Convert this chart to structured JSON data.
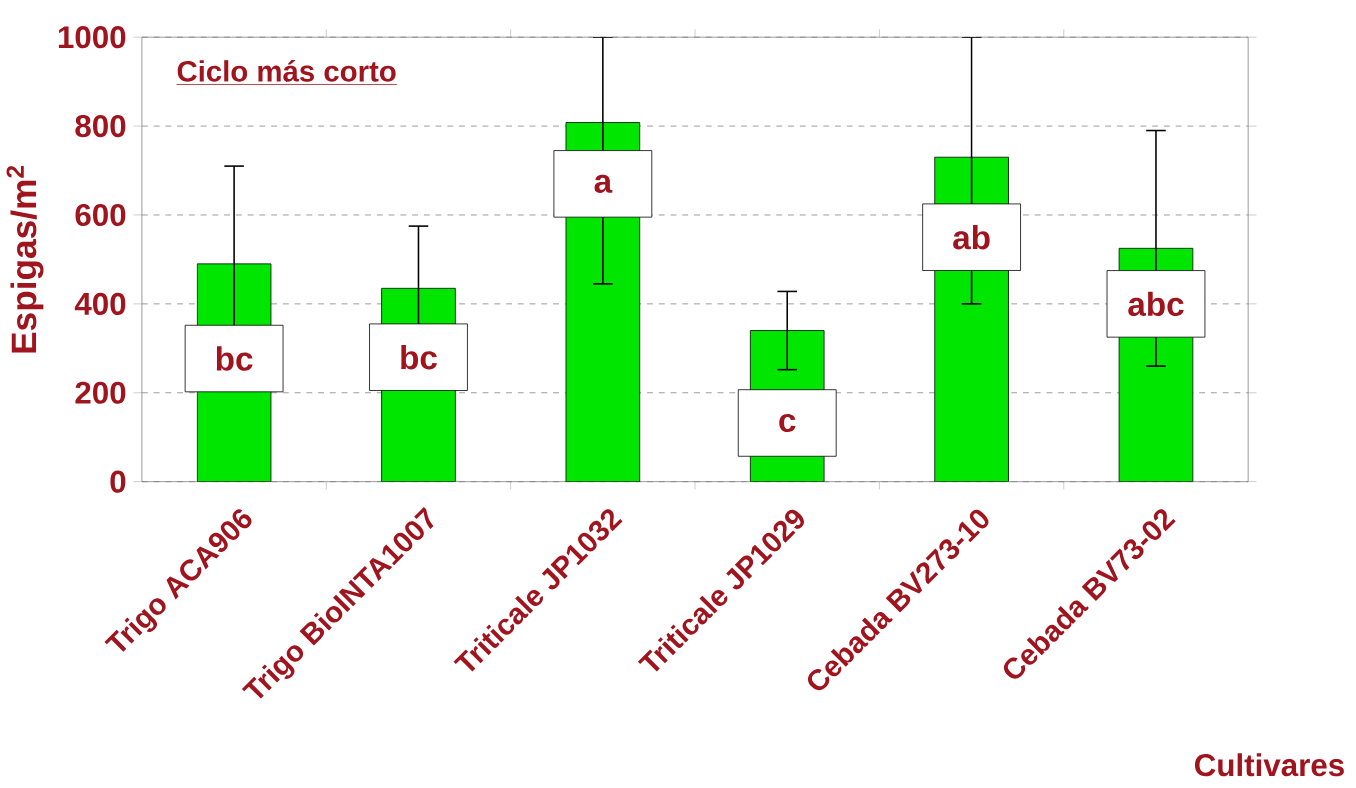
{
  "chart_data": {
    "type": "bar",
    "title": "Ciclo más corto",
    "xlabel": "Cultivares",
    "ylabel": "Espigas/m$^{2}$",
    "categories": [
      "Trigo ACA906",
      "Trigo BioINTA1007",
      "Triticale JP1032",
      "Triticale JP1029",
      "Cebada BV273-10",
      "Cebada BV73-02"
    ],
    "values": [
      490,
      435,
      808,
      340,
      730,
      525
    ],
    "errors": [
      220,
      140,
      [
        445,
        1000
      ],
      88,
      [
        400,
        1000
      ],
      265
    ],
    "color": "#00e600",
    "ylim": [
      0,
      1000
    ],
    "yticks": [
      0,
      200,
      400,
      600,
      800,
      1000
    ],
    "grid": "y",
    "annotations": [
      {
        "text": "bc",
        "x": "Trigo ACA906",
        "y": 277
      },
      {
        "text": "bc",
        "x": "Trigo BioINTA1007",
        "y": 280
      },
      {
        "text": "a",
        "x": "Triticale JP1032",
        "y": 670
      },
      {
        "text": "c",
        "x": "Triticale JP1029",
        "y": 132
      },
      {
        "text": "ab",
        "x": "Cebada BV273-10",
        "y": 550
      },
      {
        "text": "abc",
        "x": "Cebada BV73-02",
        "y": 400
      }
    ]
  }
}
